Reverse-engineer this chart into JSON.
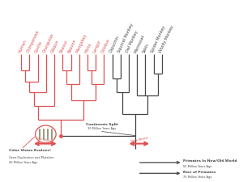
{
  "taxa": [
    "Human",
    "Chimpanzee",
    "Gorilla",
    "Orangutan",
    "Gibbon",
    "Rhesus",
    "Baboon",
    "Mangabey",
    "Mona",
    "Langur",
    "Colobus",
    "Capuchin",
    "Squirrel Monkey",
    "Owl Monkey",
    "Marmoset",
    "Sakis",
    "Spider Monkey",
    "Woolly Monkey"
  ],
  "red_color": "#e05050",
  "dark_color": "#444444",
  "bg_color": "#ffffff",
  "lw": 0.9
}
